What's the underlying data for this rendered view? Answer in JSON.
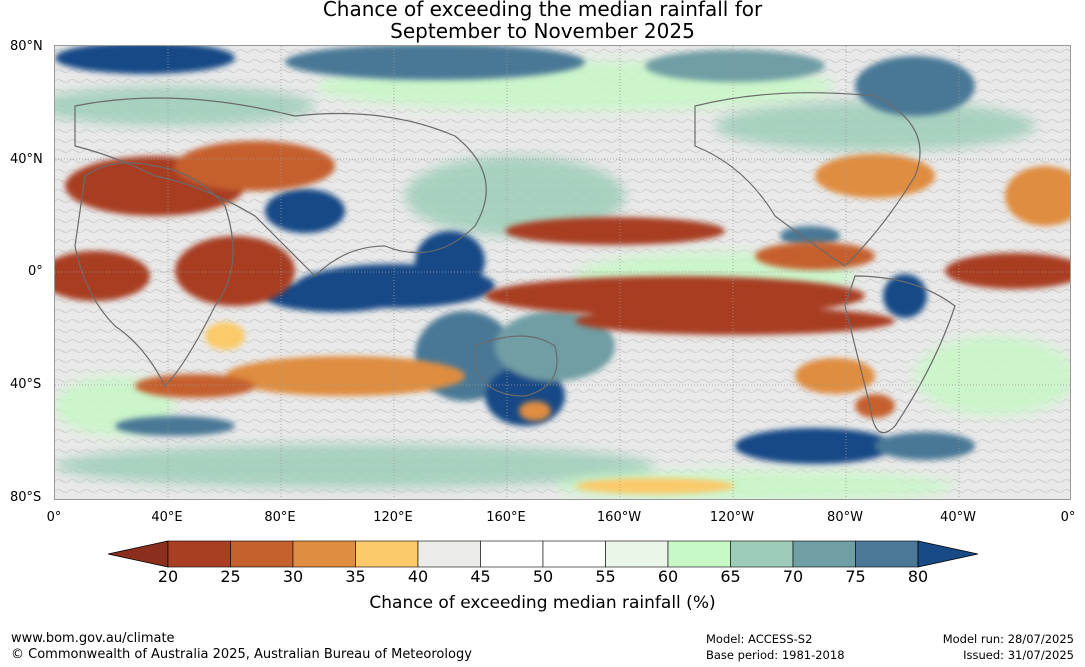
{
  "title": {
    "line1": "Chance of exceeding the median rainfall for",
    "line2": "September to November 2025"
  },
  "map": {
    "lat_labels": [
      "80°N",
      "40°N",
      "0°",
      "40°S",
      "80°S"
    ],
    "lon_labels": [
      "0°",
      "40°E",
      "80°E",
      "120°E",
      "160°E",
      "160°W",
      "120°W",
      "80°W",
      "40°W",
      "0°"
    ],
    "palette": {
      "ocean_neutral": "#e9e9e9",
      "coast": "#6b6b6b",
      "grid": "#9a9a9a"
    }
  },
  "colorbar": {
    "ticks": [
      "20",
      "25",
      "30",
      "35",
      "40",
      "45",
      "50",
      "55",
      "60",
      "65",
      "70",
      "75",
      "80"
    ],
    "colors": [
      "#a83e22",
      "#c5602f",
      "#df8d41",
      "#fbca6a",
      "#ebebe8",
      "#ffffff",
      "#ffffff",
      "#eaf6e8",
      "#c7f8c6",
      "#9dcdb8",
      "#6f9ea4",
      "#4a7896"
    ],
    "low_end_color": "#8b2e1d",
    "high_end_color": "#184a86",
    "label": "Chance of exceeding median rainfall (%)"
  },
  "footer": {
    "website": "www.bom.gov.au/climate",
    "copyright": "© Commonwealth of Australia 2025, Australian Bureau of Meteorology",
    "model": "Model: ACCESS-S2",
    "base_period": "Base period: 1981-2018",
    "model_run": "Model run: 28/07/2025",
    "issued": "Issued: 31/07/2025"
  }
}
